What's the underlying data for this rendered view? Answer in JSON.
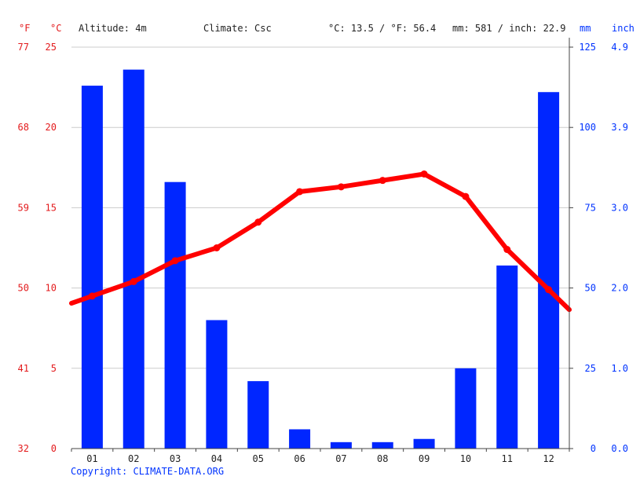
{
  "header": {
    "unit_f": "°F",
    "unit_c": "°C",
    "altitude": "Altitude: 4m",
    "climate": "Climate: Csc",
    "temp_avg": "°C: 13.5 / °F: 56.4",
    "precip_avg": "mm: 581 / inch: 22.9",
    "unit_mm": "mm",
    "unit_inch": "inch"
  },
  "copyright": "Copyright: CLIMATE-DATA.ORG",
  "colors": {
    "temperature": "#ff0000",
    "precipitation": "#0026ff",
    "axis_temp": "#e31a1c",
    "axis_precip": "#0033ff",
    "grid": "#cccccc"
  },
  "chart_data": {
    "type": "bar",
    "categories": [
      "01",
      "02",
      "03",
      "04",
      "05",
      "06",
      "07",
      "08",
      "09",
      "10",
      "11",
      "12"
    ],
    "series": [
      {
        "kind": "bar",
        "axis": "precip_mm",
        "values": [
          113,
          118,
          83,
          40,
          21,
          6,
          2,
          2,
          3,
          25,
          57,
          111
        ]
      },
      {
        "kind": "line",
        "axis": "temp_c",
        "values": [
          9.5,
          10.4,
          11.7,
          12.5,
          14.1,
          16.0,
          16.3,
          16.7,
          17.1,
          15.7,
          12.4,
          9.9
        ]
      }
    ],
    "ylim_c": [
      0,
      25
    ],
    "ylim_mm": [
      0,
      125
    ],
    "yticks_c": [
      0,
      5,
      10,
      15,
      20,
      25
    ],
    "yticks_f": [
      32,
      41,
      50,
      59,
      68,
      77
    ],
    "yticks_mm": [
      0,
      25,
      50,
      75,
      100,
      125
    ],
    "yticks_inch": [
      "0.0",
      "1.0",
      "2.0",
      "3.0",
      "3.9",
      "4.9"
    ],
    "grid": true
  }
}
